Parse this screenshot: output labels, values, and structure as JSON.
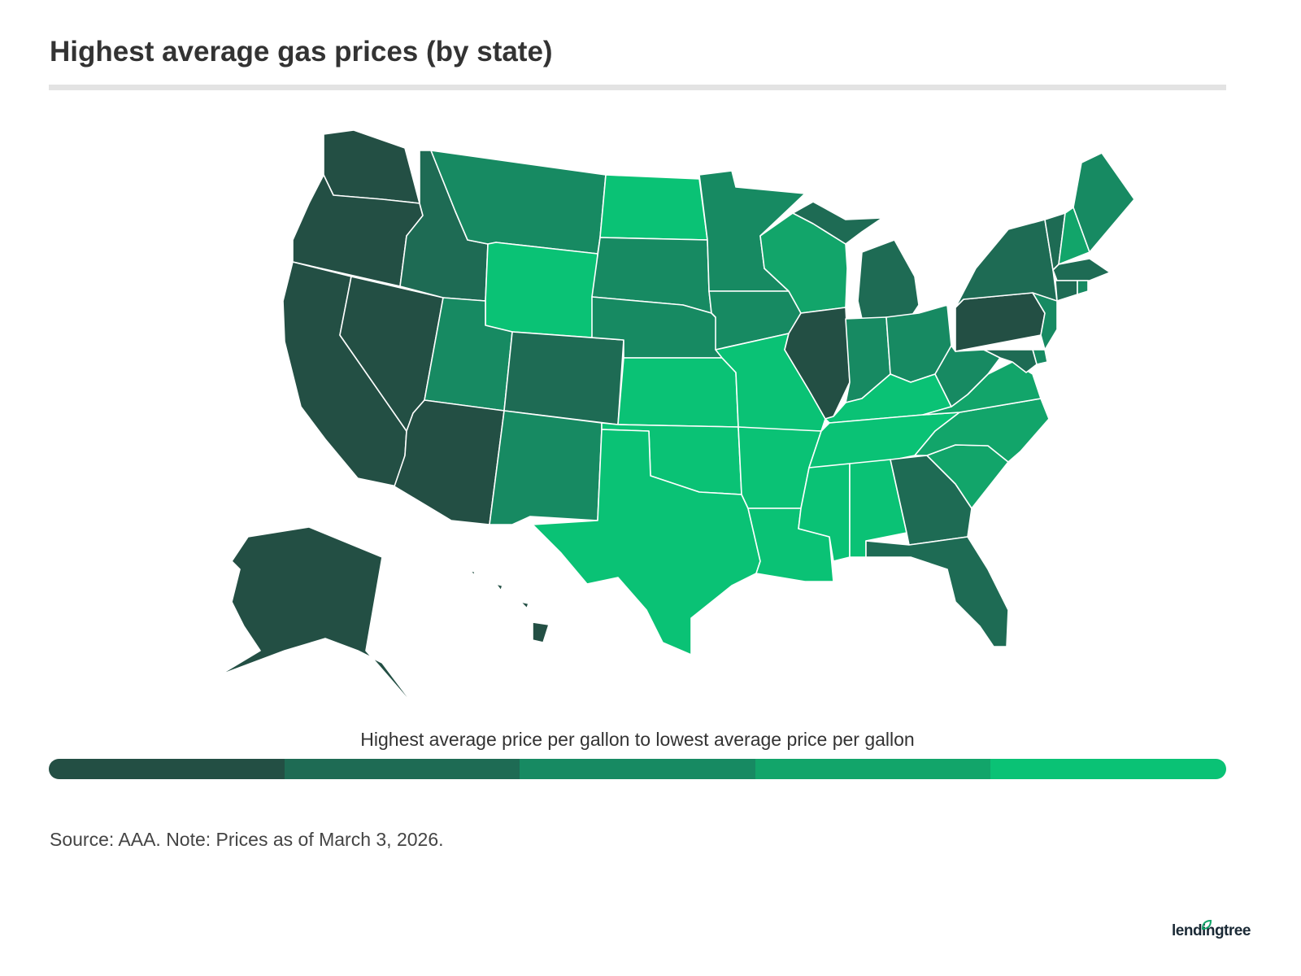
{
  "title": "Highest average gas prices (by state)",
  "legend": {
    "label": "Highest average price per gallon to lowest average price per gallon",
    "colors": [
      "#234f44",
      "#1e6b54",
      "#178a62",
      "#12a56a",
      "#0ac275"
    ]
  },
  "source": "Source: AAA. Note: Prices as of March 3, 2026.",
  "logo": "lendingtree",
  "chart_data": {
    "type": "choropleth",
    "bins_note_order": "1 = highest price, 5 = lowest price",
    "state_bins": {
      "WA": 1,
      "OR": 1,
      "CA": 1,
      "NV": 1,
      "AZ": 1,
      "AK": 1,
      "HI": 1,
      "IL": 1,
      "PA": 1,
      "ID": 2,
      "CO": 2,
      "MI": 2,
      "NY": 2,
      "VT": 2,
      "GA": 2,
      "FL": 2,
      "MD": 2,
      "CT": 2,
      "MA": 2,
      "MT": 3,
      "SD": 3,
      "NE": 3,
      "MN": 3,
      "IA": 3,
      "UT": 3,
      "NM": 3,
      "IN": 3,
      "OH": 3,
      "WV": 3,
      "ME": 3,
      "NJ": 3,
      "RI": 3,
      "DE": 3,
      "WI": 4,
      "NH": 4,
      "VA": 4,
      "NC": 4,
      "SC": 4,
      "WY": 5,
      "ND": 5,
      "KS": 5,
      "OK": 5,
      "TX": 5,
      "MO": 5,
      "AR": 5,
      "LA": 5,
      "MS": 5,
      "AL": 5,
      "TN": 5,
      "KY": 5
    }
  }
}
